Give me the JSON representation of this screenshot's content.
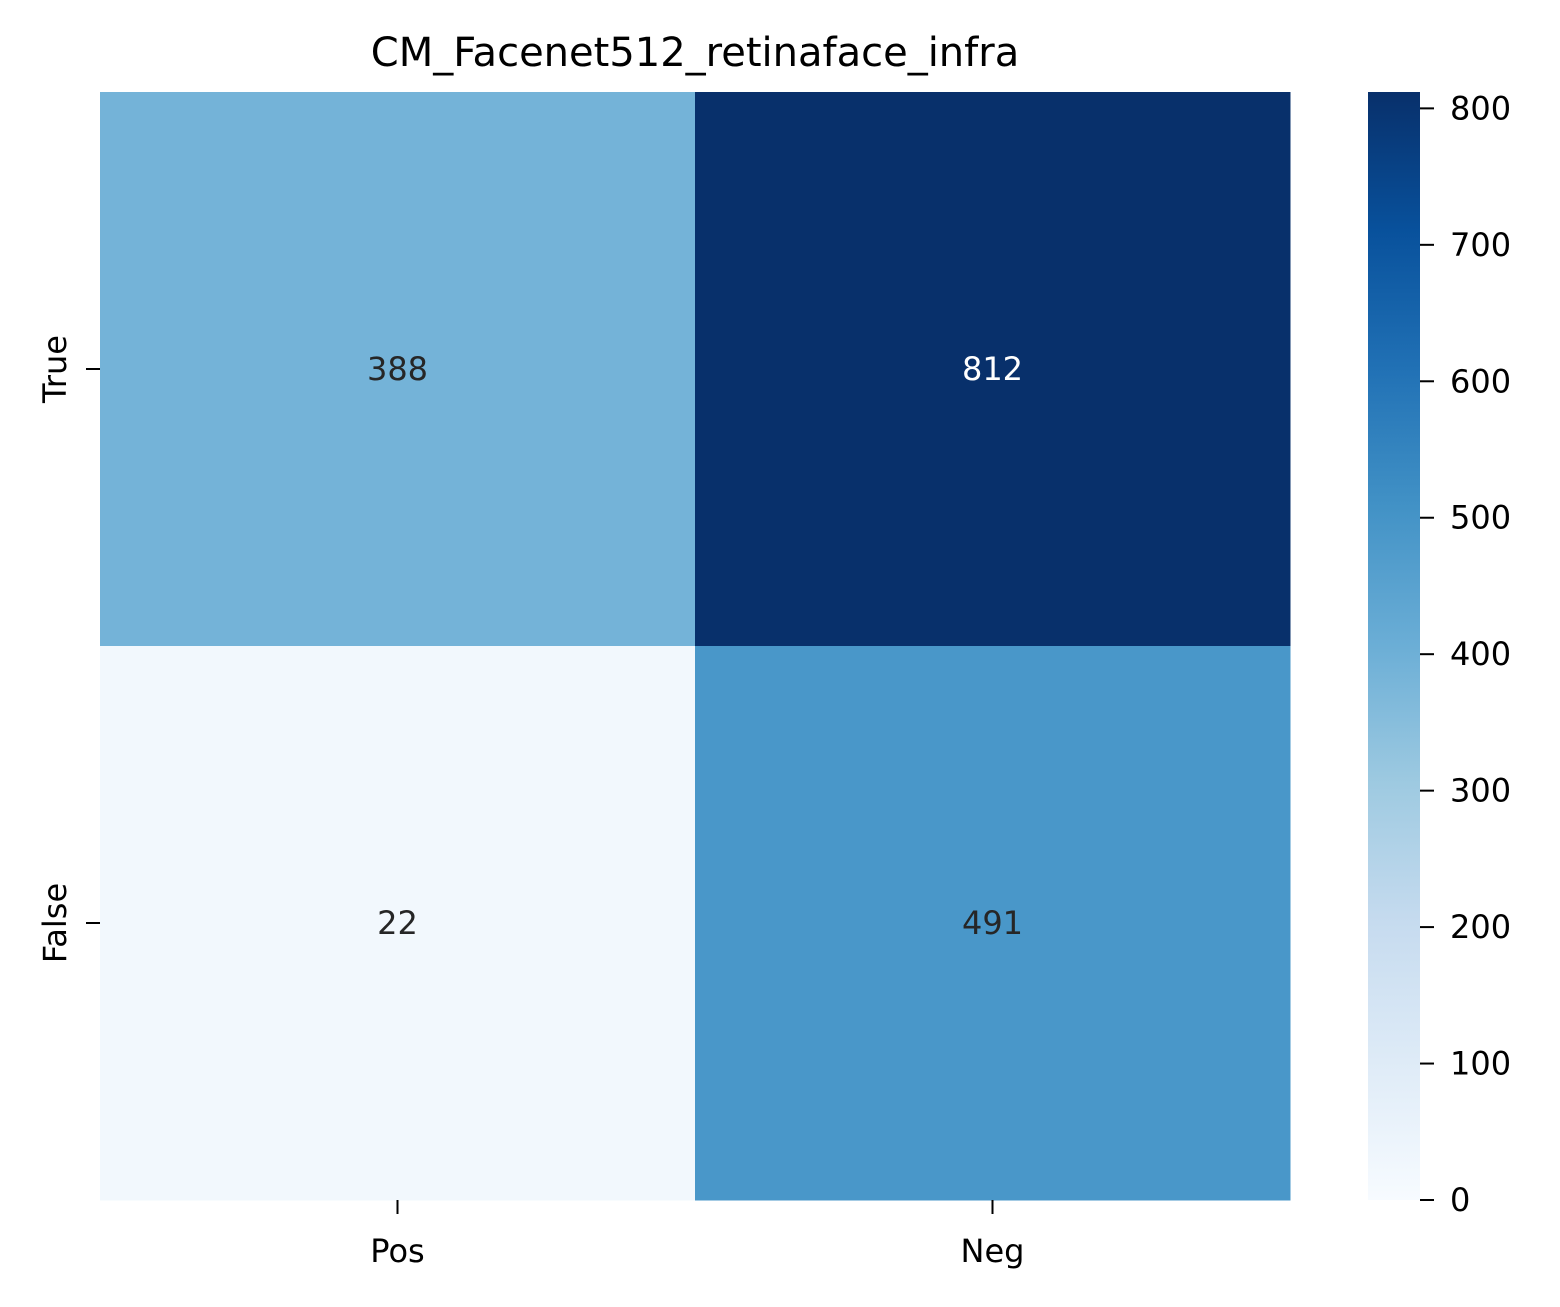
{
  "chart_data": {
    "type": "heatmap",
    "title": "CM_Facenet512_retinaface_infra",
    "xlabel": "",
    "ylabel": "",
    "x_categories": [
      "Pos",
      "Neg"
    ],
    "y_categories": [
      "True",
      "False"
    ],
    "values": [
      [
        388,
        812
      ],
      [
        22,
        491
      ]
    ],
    "colormap": "Blues",
    "colorbar": {
      "min": 0,
      "max": 812,
      "ticks": [
        0,
        100,
        200,
        300,
        400,
        500,
        600,
        700,
        800
      ]
    },
    "annotation_text_colors": {
      "light": "#262626",
      "dark": "#ffffff"
    },
    "grid": false
  }
}
